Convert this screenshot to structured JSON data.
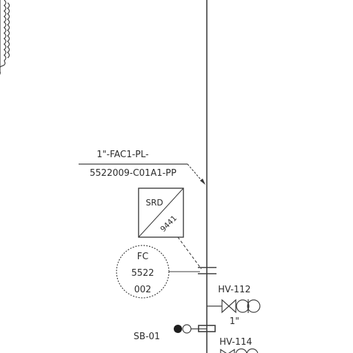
{
  "line_label": {
    "line1": "1\"-FAC1-PL-",
    "line2": "5522009-C01A1-PP"
  },
  "srd_box": {
    "top": "SRD",
    "bottom": "9441"
  },
  "instrument_balloon": {
    "tag": "FC",
    "number": "5522",
    "suffix": "002"
  },
  "valves": [
    {
      "tag": "HV-112",
      "size": "1\""
    },
    {
      "tag": "HV-114"
    }
  ],
  "sample_point": {
    "tag": "SB-01"
  },
  "colors": {
    "line": "#3a3a3a",
    "text": "#2b2b2b",
    "background": "#ffffff"
  }
}
